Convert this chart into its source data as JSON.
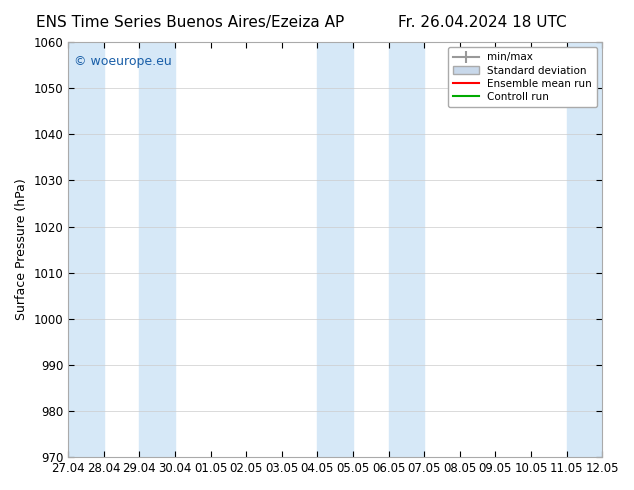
{
  "title_left": "ENS Time Series Buenos Aires/Ezeiza AP",
  "title_right": "Fr. 26.04.2024 18 UTC",
  "ylabel": "Surface Pressure (hPa)",
  "ylim": [
    970,
    1060
  ],
  "yticks": [
    970,
    980,
    990,
    1000,
    1010,
    1020,
    1030,
    1040,
    1050,
    1060
  ],
  "xtick_labels": [
    "27.04",
    "28.04",
    "29.04",
    "30.04",
    "01.05",
    "02.05",
    "03.05",
    "04.05",
    "05.05",
    "06.05",
    "07.05",
    "08.05",
    "09.05",
    "10.05",
    "11.05",
    "12.05"
  ],
  "shaded_pairs": [
    [
      "27.04",
      "28.04"
    ],
    [
      "29.04",
      "30.04"
    ],
    [
      "04.05",
      "05.05"
    ],
    [
      "06.05",
      "07.05"
    ],
    [
      "11.05",
      "12.05"
    ]
  ],
  "shaded_color": "#d6e8f7",
  "background_color": "#ffffff",
  "plot_bg_color": "#ffffff",
  "legend_labels": [
    "min/max",
    "Standard deviation",
    "Ensemble mean run",
    "Controll run"
  ],
  "watermark_text": "© woeurope.eu",
  "watermark_color": "#1a5fa8",
  "title_fontsize": 11,
  "tick_fontsize": 8.5,
  "ylabel_fontsize": 9
}
